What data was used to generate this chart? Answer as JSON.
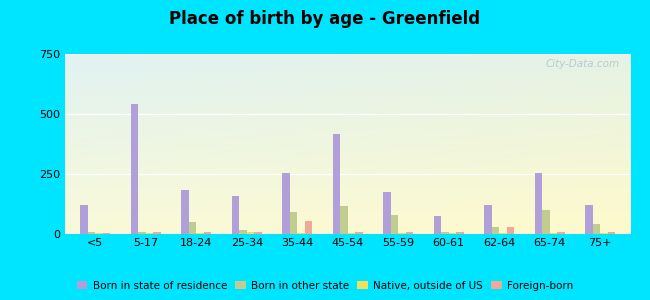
{
  "title": "Place of birth by age - Greenfield",
  "categories": [
    "<5",
    "5-17",
    "18-24",
    "25-34",
    "35-44",
    "45-54",
    "55-59",
    "60-61",
    "62-64",
    "65-74",
    "75+"
  ],
  "series": {
    "Born in state of residence": [
      120,
      540,
      185,
      160,
      255,
      415,
      175,
      75,
      120,
      255,
      120
    ],
    "Born in other state": [
      10,
      8,
      50,
      15,
      90,
      115,
      80,
      10,
      30,
      100,
      40
    ],
    "Native, outside of US": [
      5,
      5,
      5,
      8,
      5,
      5,
      5,
      5,
      5,
      5,
      5
    ],
    "Foreign-born": [
      5,
      10,
      10,
      10,
      55,
      10,
      10,
      10,
      30,
      10,
      10
    ]
  },
  "colors": {
    "Born in state of residence": "#b09fd8",
    "Born in other state": "#c0cc90",
    "Native, outside of US": "#f0e060",
    "Foreign-born": "#f0a898"
  },
  "ylim": [
    0,
    750
  ],
  "yticks": [
    0,
    250,
    500,
    750
  ],
  "outer_bg": "#00e5ff",
  "bar_width": 0.15,
  "watermark": "City-Data.com"
}
